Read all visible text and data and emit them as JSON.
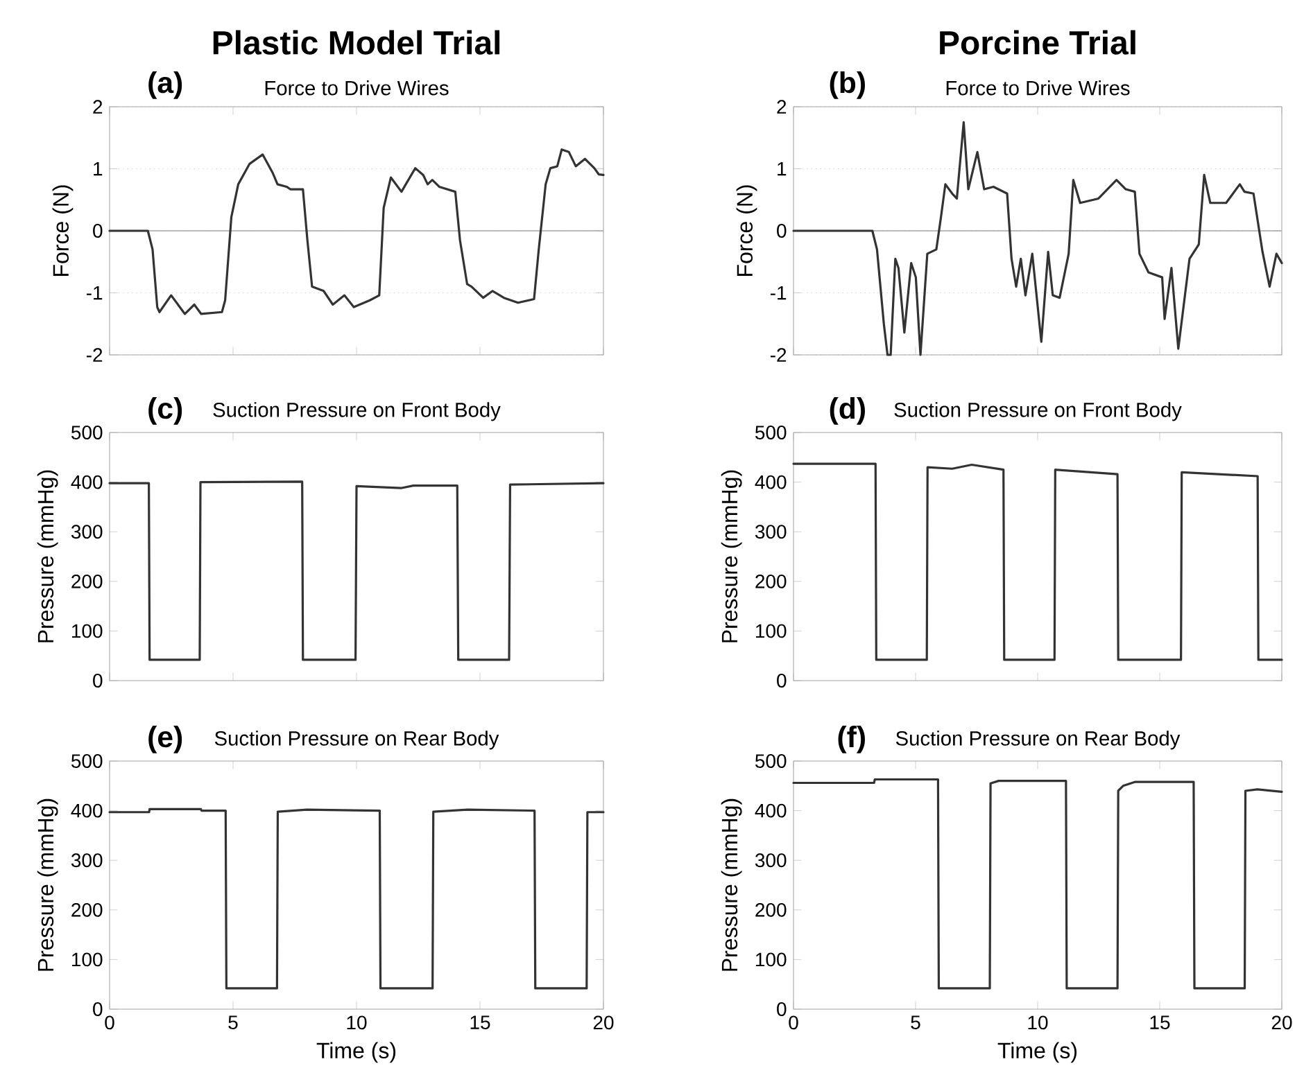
{
  "chart_data": [
    {
      "type": "line",
      "title": "Force to Drive Wires",
      "ylabel": "Force (N)",
      "annotations": [
        "(a)",
        "Plastic Model Trial"
      ],
      "color": "#333333",
      "xlim": [
        0,
        20
      ],
      "xticks": [
        0,
        5,
        10,
        15,
        20
      ],
      "ylim": [
        -2,
        2
      ],
      "yticks": [
        -2,
        -1,
        0,
        1,
        2
      ],
      "grid": "y",
      "tick_labels": "y",
      "ref_lines": [
        {
          "axis": "y",
          "value": 0
        }
      ],
      "x": [
        0,
        1.55,
        1.74,
        1.93,
        2.02,
        2.49,
        3.05,
        3.43,
        3.71,
        4.55,
        4.68,
        4.93,
        5.21,
        5.67,
        6.2,
        6.61,
        6.8,
        7.17,
        7.32,
        7.83,
        8.01,
        8.2,
        8.67,
        9.04,
        9.51,
        9.89,
        10.54,
        10.92,
        11.1,
        11.39,
        11.82,
        12.38,
        12.7,
        12.88,
        13.07,
        13.35,
        14.0,
        14.19,
        14.48,
        14.66,
        15.13,
        15.51,
        15.97,
        16.54,
        17.19,
        17.38,
        17.66,
        17.85,
        18.13,
        18.31,
        18.6,
        18.88,
        19.25,
        19.63,
        19.81,
        20
      ],
      "values": [
        0,
        0,
        -0.3,
        -1.23,
        -1.31,
        -1.04,
        -1.34,
        -1.19,
        -1.34,
        -1.31,
        -1.12,
        0.22,
        0.75,
        1.08,
        1.23,
        0.93,
        0.75,
        0.71,
        0.67,
        0.67,
        -0.15,
        -0.9,
        -0.97,
        -1.19,
        -1.04,
        -1.23,
        -1.12,
        -1.04,
        0.37,
        0.86,
        0.63,
        1.01,
        0.9,
        0.75,
        0.82,
        0.71,
        0.63,
        -0.15,
        -0.86,
        -0.9,
        -1.08,
        -0.97,
        -1.08,
        -1.16,
        -1.1,
        -0.3,
        0.75,
        1.01,
        1.04,
        1.31,
        1.27,
        1.04,
        1.16,
        1.01,
        0.91,
        0.9
      ]
    },
    {
      "type": "line",
      "title": "Force to Drive Wires",
      "ylabel": "Force (N)",
      "annotations": [
        "(b)",
        "Porcine Trial"
      ],
      "color": "#333333",
      "xlim": [
        0,
        20
      ],
      "xticks": [
        0,
        5,
        10,
        15,
        20
      ],
      "ylim": [
        -2,
        2
      ],
      "yticks": [
        -2,
        -1,
        0,
        1,
        2
      ],
      "grid": "y",
      "tick_labels": "y",
      "ref_lines": [
        {
          "axis": "y",
          "value": 0
        }
      ],
      "x": [
        0,
        3.23,
        3.42,
        3.7,
        3.85,
        3.98,
        4.17,
        4.3,
        4.54,
        4.82,
        5.01,
        5.2,
        5.48,
        5.85,
        6.04,
        6.22,
        6.5,
        6.69,
        6.97,
        7.16,
        7.53,
        7.81,
        8.19,
        8.75,
        8.93,
        9.12,
        9.31,
        9.5,
        9.78,
        10.15,
        10.43,
        10.62,
        10.9,
        11.27,
        11.46,
        11.74,
        12.49,
        13.23,
        13.61,
        13.98,
        14.17,
        14.54,
        15.1,
        15.2,
        15.48,
        15.76,
        16.22,
        16.6,
        16.82,
        17.07,
        17.72,
        18.28,
        18.47,
        18.84,
        19.21,
        19.5,
        19.78,
        20
      ],
      "values": [
        0,
        0,
        -0.3,
        -1.5,
        -2,
        -2,
        -0.45,
        -0.6,
        -1.64,
        -0.52,
        -0.75,
        -2,
        -0.37,
        -0.3,
        0.22,
        0.75,
        0.6,
        0.52,
        1.75,
        0.67,
        1.27,
        0.67,
        0.71,
        0.6,
        -0.45,
        -0.9,
        -0.45,
        -1.04,
        -0.37,
        -1.79,
        -0.34,
        -1.04,
        -1.08,
        -0.37,
        0.82,
        0.45,
        0.52,
        0.82,
        0.67,
        0.63,
        -0.37,
        -0.67,
        -0.75,
        -1.42,
        -0.6,
        -1.9,
        -0.45,
        -0.22,
        0.9,
        0.45,
        0.45,
        0.75,
        0.63,
        0.6,
        -0.34,
        -0.9,
        -0.37,
        -0.52
      ]
    },
    {
      "type": "line",
      "title": "Suction Pressure on Front Body",
      "ylabel": "Pressure (mmHg)",
      "annotations": [
        "(c)"
      ],
      "color": "#333333",
      "xlim": [
        0,
        20
      ],
      "xticks": [
        0,
        5,
        10,
        15,
        20
      ],
      "ylim": [
        0,
        500
      ],
      "yticks": [
        0,
        100,
        200,
        300,
        400,
        500
      ],
      "tick_labels": "y",
      "x": [
        0,
        1.59,
        1.62,
        3.65,
        3.68,
        7.8,
        7.83,
        9.96,
        10.0,
        11.8,
        12.3,
        14.08,
        14.12,
        16.18,
        16.22,
        20
      ],
      "values": [
        398,
        398,
        42,
        42,
        400,
        401,
        42,
        42,
        392,
        388,
        393,
        393,
        42,
        42,
        395,
        398
      ]
    },
    {
      "type": "line",
      "title": "Suction Pressure on Front Body",
      "ylabel": "Pressure (mmHg)",
      "annotations": [
        "(d)"
      ],
      "color": "#333333",
      "xlim": [
        0,
        20
      ],
      "xticks": [
        0,
        5,
        10,
        15,
        20
      ],
      "ylim": [
        0,
        500
      ],
      "yticks": [
        0,
        100,
        200,
        300,
        400,
        500
      ],
      "tick_labels": "y",
      "x": [
        0,
        3.36,
        3.39,
        5.46,
        5.49,
        6.5,
        7.3,
        8.6,
        8.63,
        10.69,
        10.72,
        13.27,
        13.3,
        15.87,
        15.9,
        19.01,
        19.04,
        20
      ],
      "values": [
        437,
        437,
        42,
        42,
        430,
        427,
        435,
        425,
        42,
        42,
        425,
        416,
        42,
        42,
        420,
        412,
        42,
        42
      ]
    },
    {
      "type": "line",
      "title": "Suction Pressure on Rear Body",
      "xlabel": "Time (s)",
      "ylabel": "Pressure (mmHg)",
      "annotations": [
        "(e)"
      ],
      "color": "#333333",
      "xlim": [
        0,
        20
      ],
      "xticks": [
        0,
        5,
        10,
        15,
        20
      ],
      "ylim": [
        0,
        500
      ],
      "yticks": [
        0,
        100,
        200,
        300,
        400,
        500
      ],
      "x": [
        0,
        1.6,
        1.62,
        3.7,
        3.72,
        4.7,
        4.73,
        6.78,
        6.81,
        8.0,
        10.94,
        10.97,
        13.08,
        13.11,
        14.5,
        17.21,
        17.24,
        19.32,
        19.35,
        20
      ],
      "values": [
        397,
        397,
        403,
        403,
        400,
        400,
        42,
        42,
        398,
        402,
        400,
        42,
        42,
        398,
        402,
        400,
        42,
        42,
        397,
        397
      ]
    },
    {
      "type": "line",
      "title": "Suction Pressure on Rear Body",
      "xlabel": "Time (s)",
      "ylabel": "Pressure (mmHg)",
      "annotations": [
        "(f)"
      ],
      "color": "#333333",
      "xlim": [
        0,
        20
      ],
      "xticks": [
        0,
        5,
        10,
        15,
        20
      ],
      "ylim": [
        0,
        500
      ],
      "yticks": [
        0,
        100,
        200,
        300,
        400,
        500
      ],
      "x": [
        0,
        3.3,
        3.33,
        5.92,
        5.95,
        8.04,
        8.07,
        8.4,
        11.16,
        11.19,
        13.27,
        13.3,
        13.5,
        14.0,
        16.39,
        16.42,
        18.48,
        18.51,
        19.0,
        20
      ],
      "values": [
        456,
        456,
        463,
        463,
        42,
        42,
        455,
        460,
        460,
        42,
        42,
        440,
        450,
        458,
        458,
        42,
        42,
        440,
        443,
        438
      ]
    }
  ]
}
